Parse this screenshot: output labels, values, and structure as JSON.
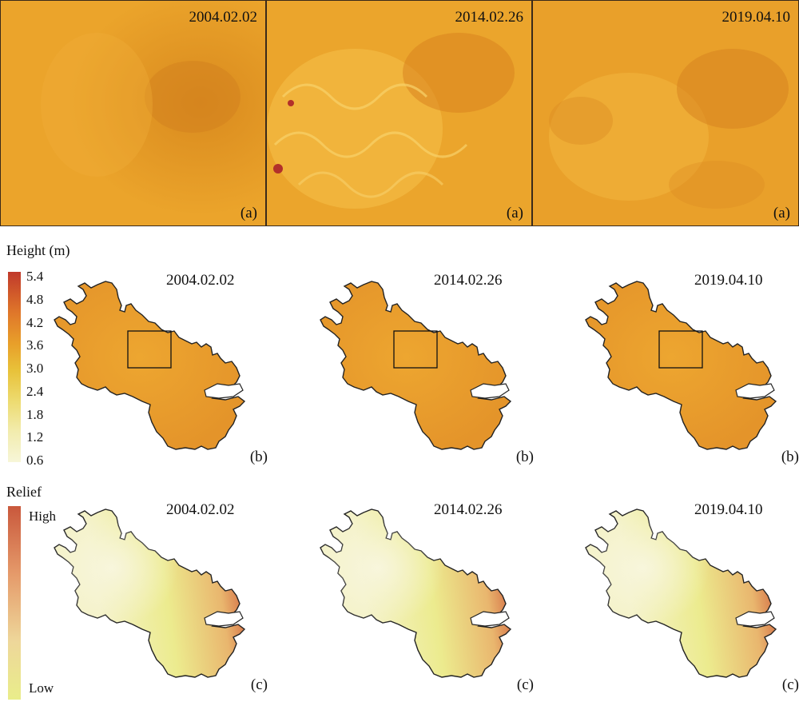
{
  "panels_a": [
    {
      "date": "2004.02.02",
      "tag": "(a)"
    },
    {
      "date": "2014.02.26",
      "tag": "(a)"
    },
    {
      "date": "2019.04.10",
      "tag": "(a)"
    }
  ],
  "panels_b": [
    {
      "date": "2004.02.02",
      "tag": "(b)"
    },
    {
      "date": "2014.02.26",
      "tag": "(b)"
    },
    {
      "date": "2019.04.10",
      "tag": "(b)"
    }
  ],
  "panels_c": [
    {
      "date": "2004.02.02",
      "tag": "(c)"
    },
    {
      "date": "2014.02.26",
      "tag": "(c)"
    },
    {
      "date": "2019.04.10",
      "tag": "(c)"
    }
  ],
  "height_legend": {
    "title": "Height (m)",
    "ticks": [
      "5.4",
      "4.8",
      "4.2",
      "3.6",
      "3.0",
      "2.4",
      "1.8",
      "1.2",
      "0.6"
    ],
    "colors": {
      "high": "#c0392b",
      "mid": "#e8a02a",
      "low": "#f7f6d8"
    }
  },
  "relief_legend": {
    "title": "Relief",
    "high": "High",
    "low": "Low",
    "colors": {
      "high": "#c9583c",
      "low": "#e9ed8a"
    }
  }
}
